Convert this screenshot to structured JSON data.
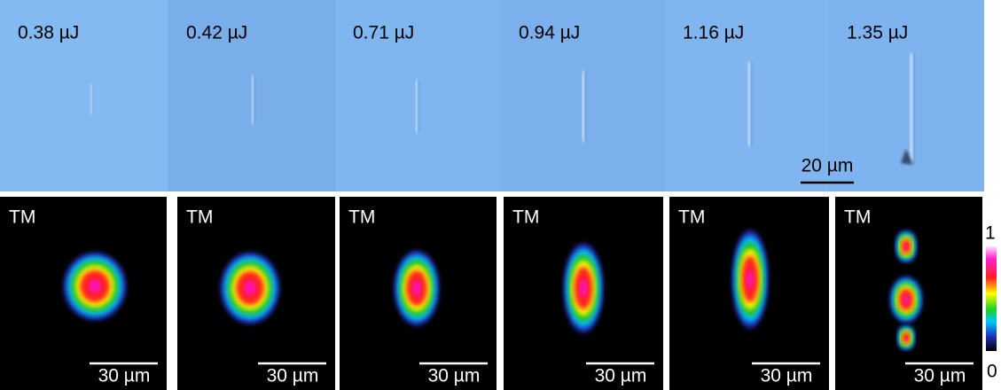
{
  "panels": [
    {
      "energy": "0.38 µJ",
      "mode_label": "TM",
      "scale_bar": "30 µm"
    },
    {
      "energy": "0.42 µJ",
      "mode_label": "TM",
      "scale_bar": "30 µm"
    },
    {
      "energy": "0.71 µJ",
      "mode_label": "TM",
      "scale_bar": "30 µm"
    },
    {
      "energy": "0.94 µJ",
      "mode_label": "TM",
      "scale_bar": "30 µm"
    },
    {
      "energy": "1.16 µJ",
      "mode_label": "TM",
      "scale_bar": "30 µm"
    },
    {
      "energy": "1.35 µJ",
      "mode_label": "TM",
      "scale_bar": "30 µm"
    }
  ],
  "top_scale_bar": "20 µm",
  "colorbar": {
    "max_label": "1",
    "min_label": "0"
  }
}
